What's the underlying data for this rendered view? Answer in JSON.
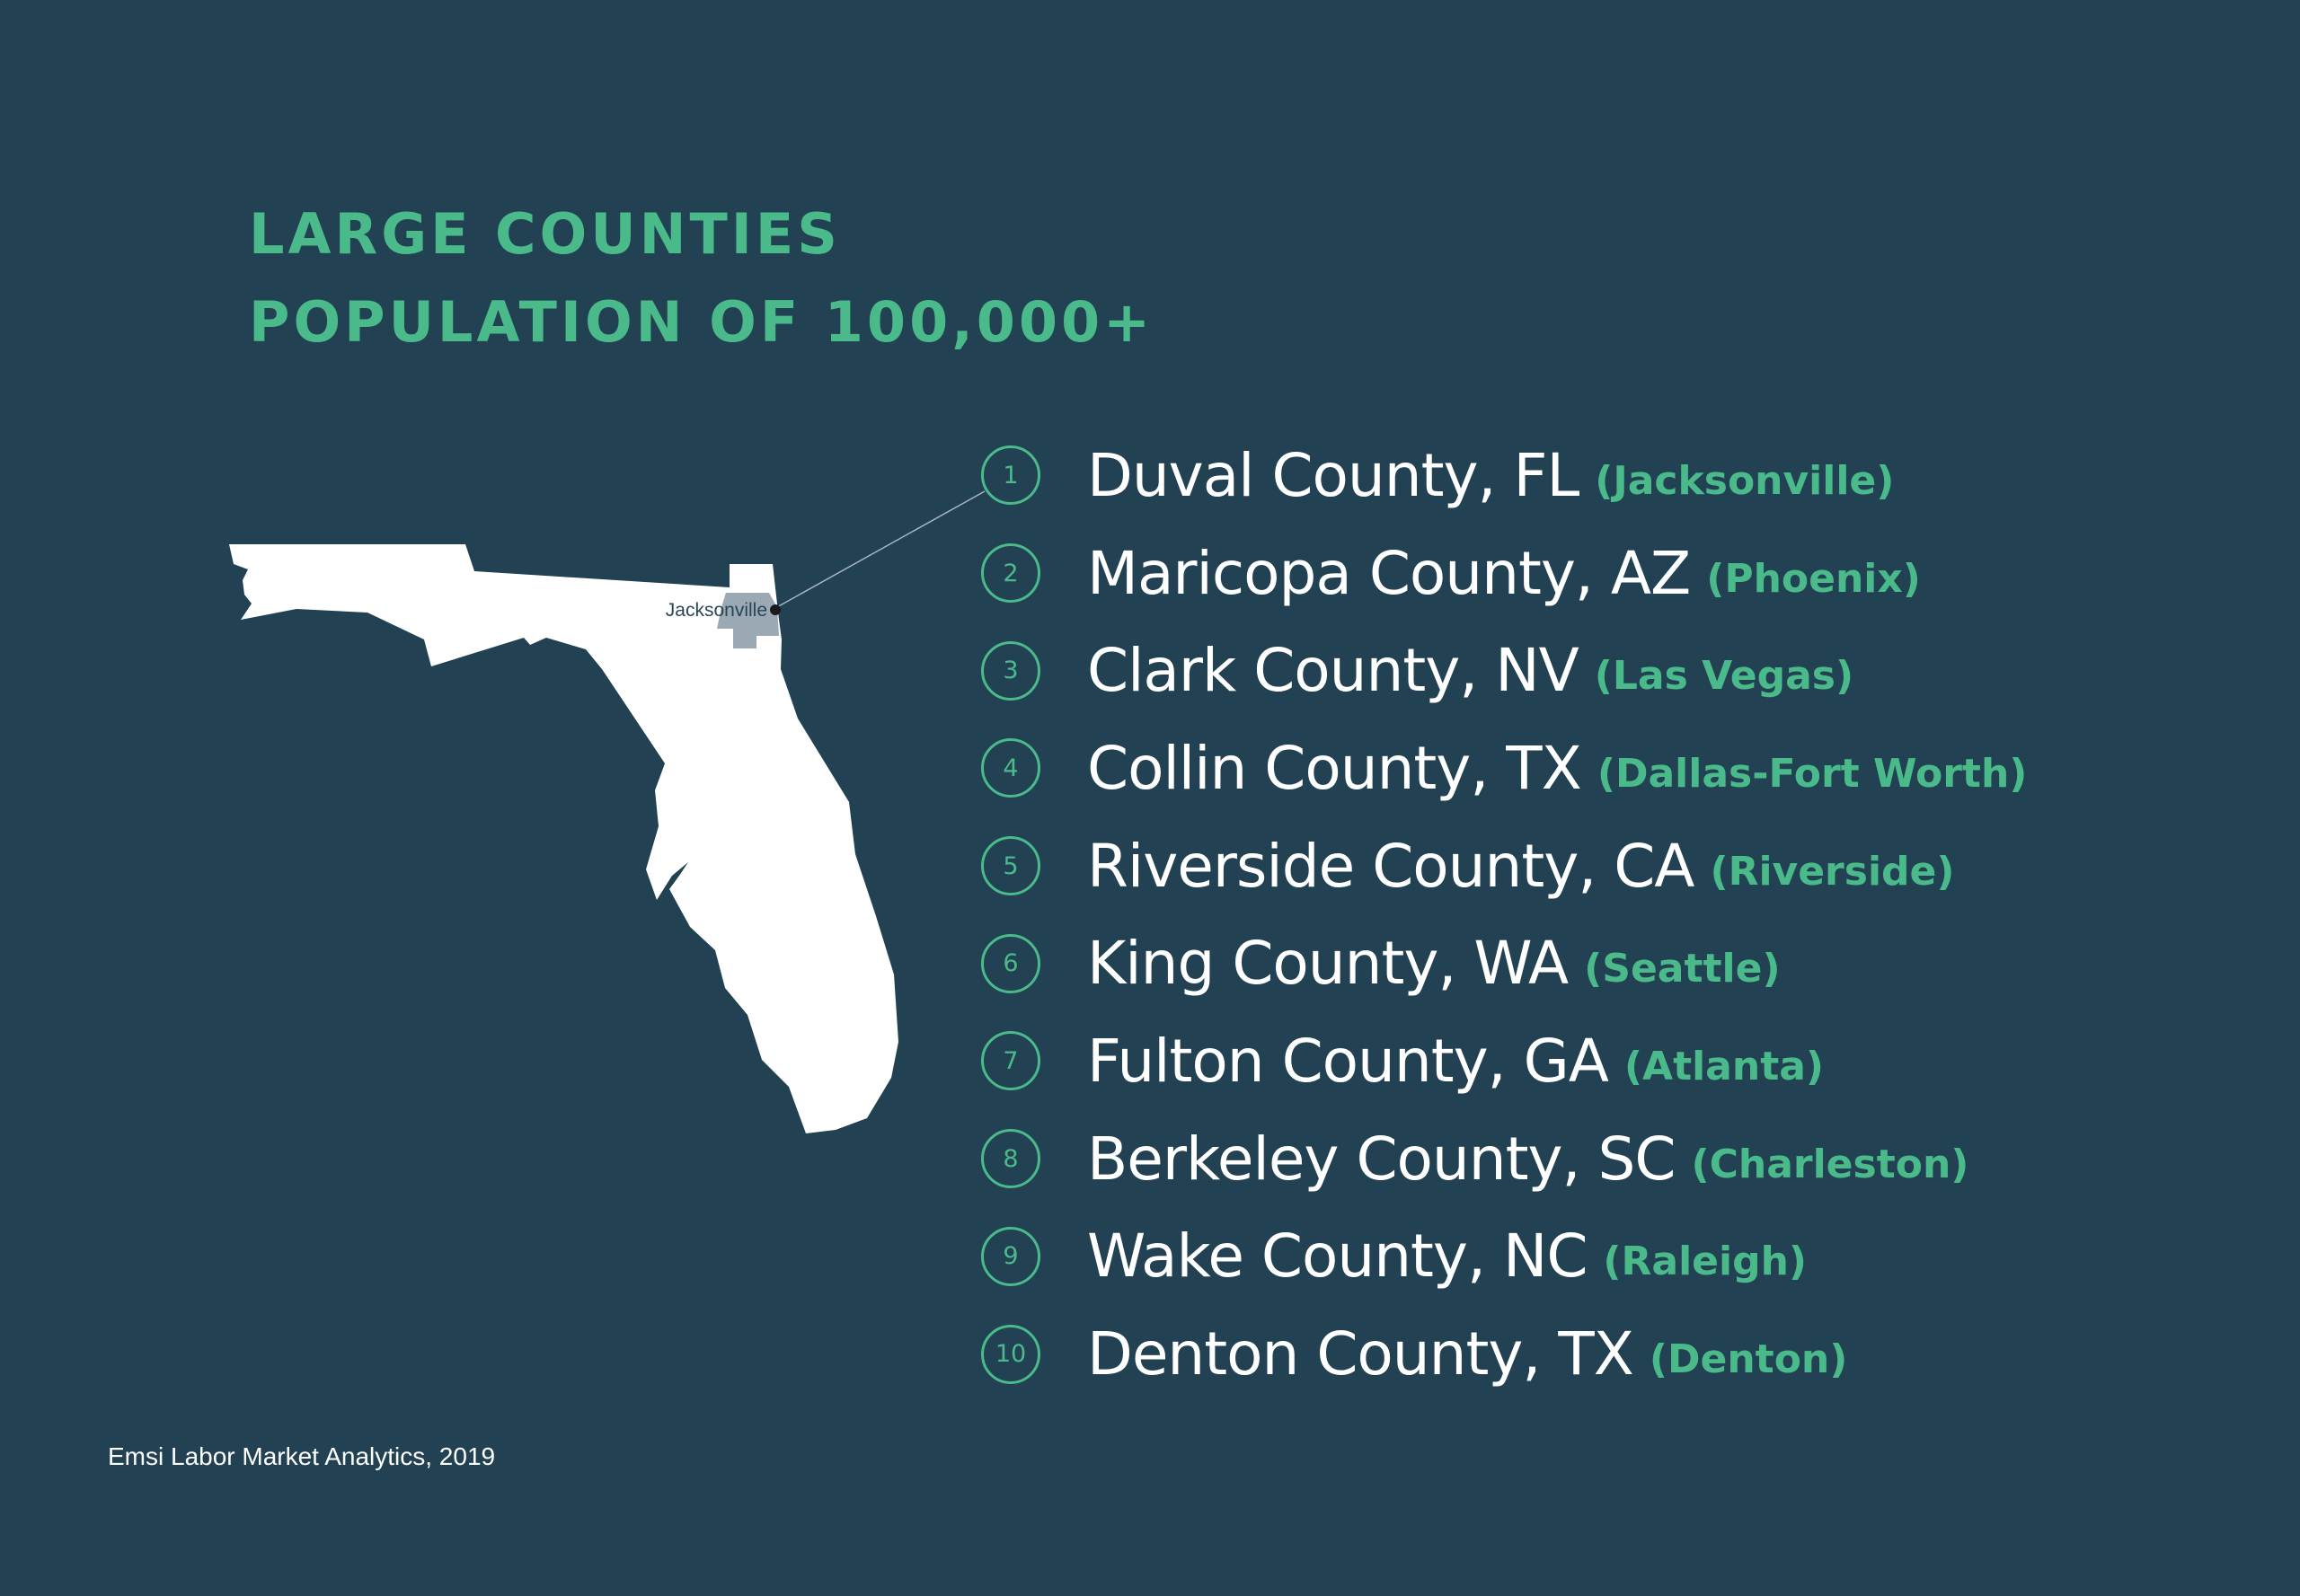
{
  "heading": {
    "line1": "LARGE COUNTIES",
    "line2": "POPULATION OF 100,000+"
  },
  "map": {
    "region": "Florida",
    "highlighted_county": "Duval County",
    "city_label": "Jacksonville",
    "connector_target_rank": 1,
    "colors": {
      "land": "#ffffff",
      "highlight": "#9aa9b3",
      "city_dot": "#1a1a1a",
      "connector": "#a8b6bf"
    }
  },
  "rankings": [
    {
      "rank": "1",
      "county": "Duval County, FL",
      "metro": "(Jacksonville)"
    },
    {
      "rank": "2",
      "county": "Maricopa County, AZ",
      "metro": "(Phoenix)"
    },
    {
      "rank": "3",
      "county": "Clark County, NV",
      "metro": "(Las Vegas)"
    },
    {
      "rank": "4",
      "county": "Collin County, TX",
      "metro": "(Dallas-Fort Worth)"
    },
    {
      "rank": "5",
      "county": "Riverside County, CA",
      "metro": "(Riverside)"
    },
    {
      "rank": "6",
      "county": "King County, WA",
      "metro": "(Seattle)"
    },
    {
      "rank": "7",
      "county": "Fulton County, GA",
      "metro": "(Atlanta)"
    },
    {
      "rank": "8",
      "county": "Berkeley County, SC",
      "metro": "(Charleston)"
    },
    {
      "rank": "9",
      "county": "Wake County, NC",
      "metro": "(Raleigh)"
    },
    {
      "rank": "10",
      "county": "Denton County, TX",
      "metro": "(Denton)"
    }
  ],
  "source": "Emsi Labor Market Analytics, 2019",
  "colors": {
    "background": "#224153",
    "accent": "#4bba8b",
    "text": "#ffffff"
  }
}
